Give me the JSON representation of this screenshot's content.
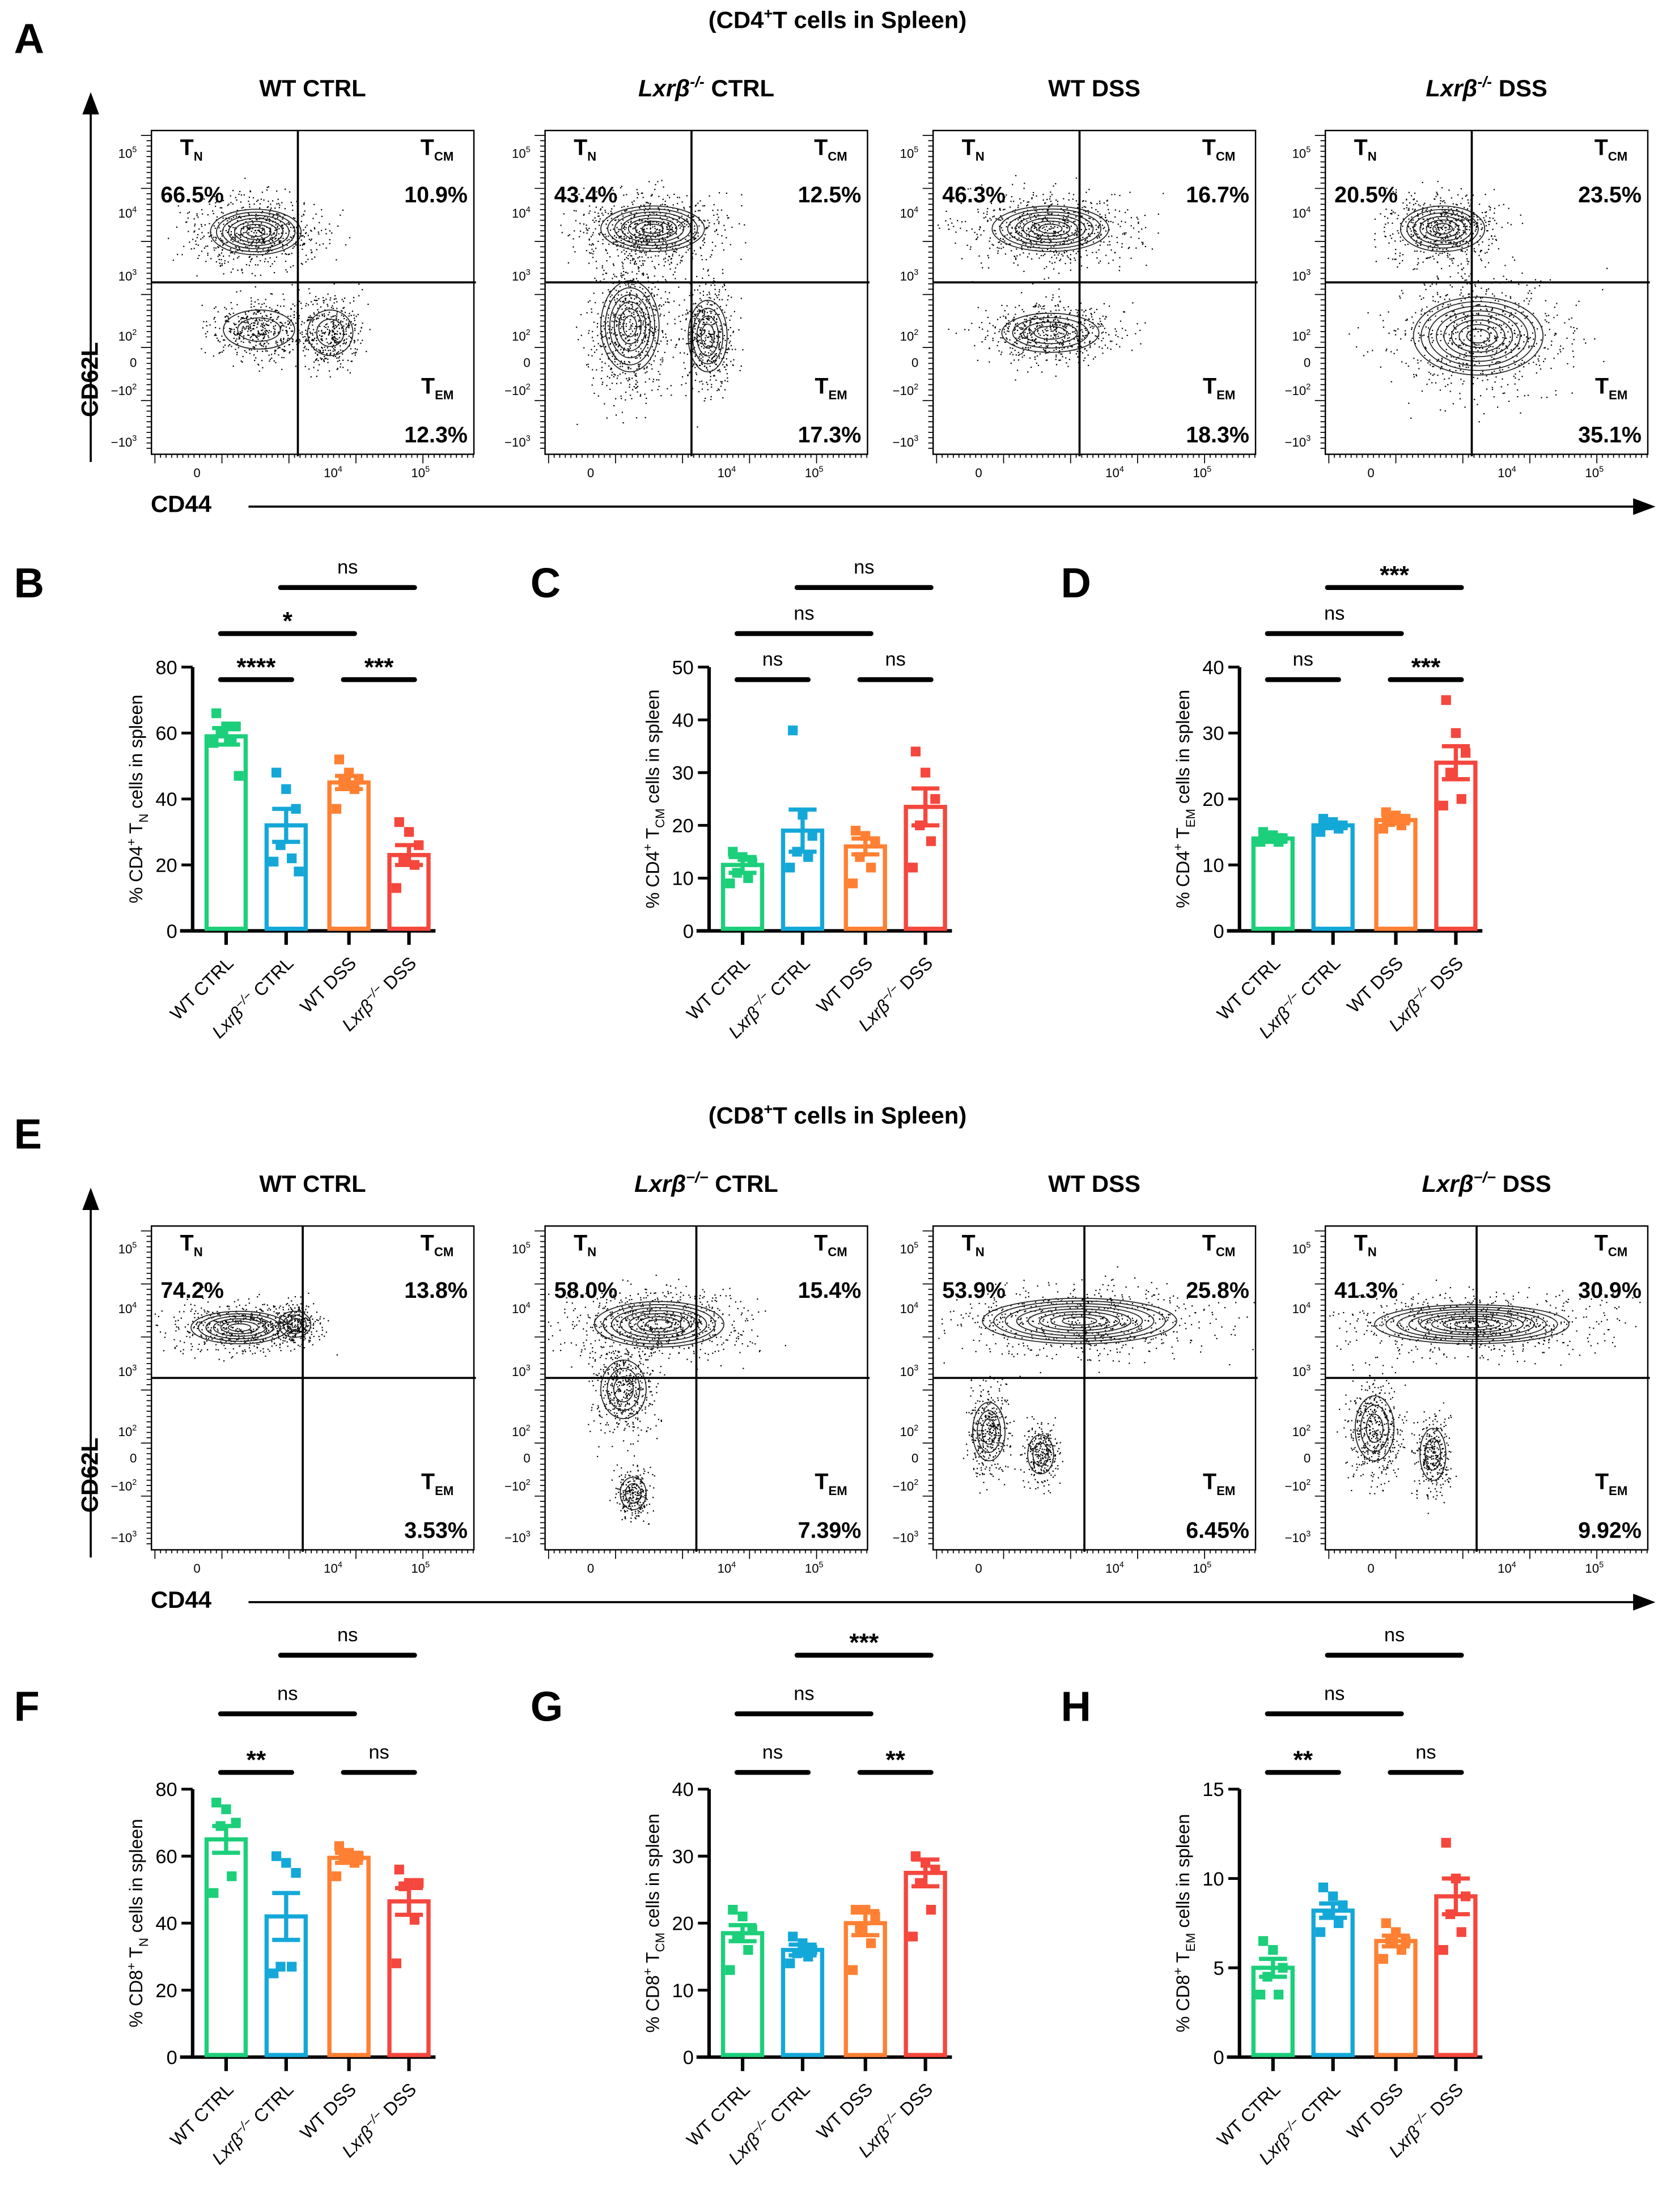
{
  "flow_rows": [
    {
      "letter": "A",
      "title": {
        "pre": "(CD4",
        "sup": "+",
        "post": "T cells in Spleen)"
      },
      "y_axis": "CD62L",
      "x_axis": "CD44",
      "plots": [
        {
          "title": {
            "gene": "",
            "sup": "",
            "text": "WT CTRL"
          },
          "TN": "66.5%",
          "TCM": "10.9%",
          "TEM": "12.3%"
        },
        {
          "title": {
            "gene": "Lxrβ",
            "sup": "-/-",
            "text": " CTRL"
          },
          "TN": "43.4%",
          "TCM": "12.5%",
          "TEM": "17.3%"
        },
        {
          "title": {
            "gene": "",
            "sup": "",
            "text": "WT DSS"
          },
          "TN": "46.3%",
          "TCM": "16.7%",
          "TEM": "18.3%"
        },
        {
          "title": {
            "gene": "Lxrβ",
            "sup": "-/-",
            "text": " DSS"
          },
          "TN": "20.5%",
          "TCM": "23.5%",
          "TEM": "35.1%"
        }
      ]
    },
    {
      "letter": "E",
      "title": {
        "pre": "(CD8",
        "sup": "+",
        "post": "T cells in Spleen)"
      },
      "y_axis": "CD62L",
      "x_axis": "CD44",
      "plots": [
        {
          "title": {
            "gene": "",
            "sup": "",
            "text": "WT CTRL"
          },
          "TN": "74.2%",
          "TCM": "13.8%",
          "TEM": "3.53%"
        },
        {
          "title": {
            "gene": "Lxrβ",
            "sup": "−/−",
            "text": " CTRL"
          },
          "TN": "58.0%",
          "TCM": "15.4%",
          "TEM": "7.39%"
        },
        {
          "title": {
            "gene": "",
            "sup": "",
            "text": "WT DSS"
          },
          "TN": "53.9%",
          "TCM": "25.8%",
          "TEM": "6.45%"
        },
        {
          "title": {
            "gene": "Lxrβ",
            "sup": "−/−",
            "text": " DSS"
          },
          "TN": "41.3%",
          "TCM": "30.9%",
          "TEM": "9.92%"
        }
      ]
    }
  ],
  "quadrant_labels": {
    "TN": {
      "t": "T",
      "sub": "N"
    },
    "TCM": {
      "t": "T",
      "sub": "CM"
    },
    "TEM": {
      "t": "T",
      "sub": "EM"
    }
  },
  "flow_y_ticks": [
    {
      "b": "10",
      "e": "5"
    },
    {
      "b": "10",
      "e": "4"
    },
    {
      "b": "10",
      "e": "3"
    },
    {
      "b": "10",
      "e": "2"
    },
    {
      "b": "0",
      "e": ""
    },
    {
      "b": "−10",
      "e": "2"
    },
    {
      "b": "−10",
      "e": "3"
    }
  ],
  "flow_x_ticks": [
    {
      "b": "0",
      "e": ""
    },
    {
      "b": "10",
      "e": "4"
    },
    {
      "b": "10",
      "e": "5"
    }
  ],
  "colors": [
    "#1ccf7a",
    "#14a8d8",
    "#ff8033",
    "#f5473d"
  ],
  "chart_data": [
    {
      "letter": "B",
      "type": "bar",
      "categories": [
        {
          "gene": "",
          "sup": "",
          "text": "WT CTRL"
        },
        {
          "gene": "Lxrβ",
          "sup": "−/−",
          "text": " CTRL"
        },
        {
          "gene": "",
          "sup": "",
          "text": "WT DSS"
        },
        {
          "gene": "Lxrβ",
          "sup": "−/−",
          "text": "  DSS"
        }
      ],
      "ylabel": {
        "pre": "% CD4",
        "sup": "+",
        "mid": " T",
        "sub": "N",
        "post": " cells in spleen"
      },
      "ylim": [
        0,
        80
      ],
      "yticks": [
        0,
        20,
        40,
        60,
        80
      ],
      "means": [
        59,
        32,
        45,
        23
      ],
      "sem": [
        2.5,
        5,
        2,
        3
      ],
      "points": [
        [
          66,
          62,
          62,
          60,
          58,
          57,
          47
        ],
        [
          48,
          43,
          37,
          26,
          22,
          21,
          18
        ],
        [
          52,
          48,
          46,
          45,
          43,
          37
        ],
        [
          33,
          30,
          26,
          21,
          20,
          13
        ]
      ],
      "comparisons": [
        {
          "groups": [
            0,
            1
          ],
          "label": "****",
          "level": 0
        },
        {
          "groups": [
            2,
            3
          ],
          "label": "***",
          "level": 0
        },
        {
          "groups": [
            0,
            2
          ],
          "label": "*",
          "level": 1
        },
        {
          "groups": [
            1,
            3
          ],
          "label": "ns",
          "level": 2
        }
      ]
    },
    {
      "letter": "C",
      "type": "bar",
      "categories": [
        {
          "gene": "",
          "sup": "",
          "text": "WT CTRL"
        },
        {
          "gene": "Lxrβ",
          "sup": "−/−",
          "text": " CTRL"
        },
        {
          "gene": "",
          "sup": "",
          "text": "WT DSS"
        },
        {
          "gene": "Lxrβ",
          "sup": "−/−",
          "text": "  DSS"
        }
      ],
      "ylabel": {
        "pre": "% CD4",
        "sup": "+",
        "mid": " T",
        "sub": "CM",
        "post": " cells in spleen"
      },
      "ylim": [
        0,
        50
      ],
      "yticks": [
        0,
        10,
        20,
        30,
        40,
        50
      ],
      "means": [
        12.5,
        19,
        16,
        23.5
      ],
      "sem": [
        1.5,
        4,
        1.5,
        3.5
      ],
      "points": [
        [
          15,
          14,
          13,
          11,
          10,
          9
        ],
        [
          38,
          22,
          18,
          15,
          14,
          12
        ],
        [
          19,
          18,
          17,
          14,
          12,
          9
        ],
        [
          34,
          30,
          25,
          20,
          17,
          12
        ]
      ],
      "comparisons": [
        {
          "groups": [
            0,
            1
          ],
          "label": "ns",
          "level": 0
        },
        {
          "groups": [
            2,
            3
          ],
          "label": "ns",
          "level": 0
        },
        {
          "groups": [
            0,
            2
          ],
          "label": "ns",
          "level": 1
        },
        {
          "groups": [
            1,
            3
          ],
          "label": "ns",
          "level": 2
        }
      ]
    },
    {
      "letter": "D",
      "type": "bar",
      "categories": [
        {
          "gene": "",
          "sup": "",
          "text": "WT CTRL"
        },
        {
          "gene": "Lxrβ",
          "sup": "−/−",
          "text": " CTRL"
        },
        {
          "gene": "",
          "sup": "",
          "text": "WT DSS"
        },
        {
          "gene": "Lxrβ",
          "sup": "−/−",
          "text": "  DSS"
        }
      ],
      "ylabel": {
        "pre": "% CD4",
        "sup": "+",
        "mid": " T",
        "sub": "EM",
        "post": " cells in spleen"
      },
      "ylim": [
        0,
        40
      ],
      "yticks": [
        0,
        10,
        20,
        30,
        40
      ],
      "means": [
        14,
        16,
        16.8,
        25.5
      ],
      "sem": [
        0.5,
        0.4,
        0.5,
        2.5
      ],
      "points": [
        [
          15,
          14.5,
          14,
          14,
          13.5,
          13.5
        ],
        [
          17,
          16.5,
          16,
          16,
          15.5,
          15
        ],
        [
          18,
          17.5,
          17,
          16.5,
          16,
          15.5
        ],
        [
          35,
          30,
          27,
          24,
          20,
          19
        ]
      ],
      "comparisons": [
        {
          "groups": [
            0,
            1
          ],
          "label": "ns",
          "level": 0
        },
        {
          "groups": [
            2,
            3
          ],
          "label": "***",
          "level": 0
        },
        {
          "groups": [
            0,
            2
          ],
          "label": "ns",
          "level": 1
        },
        {
          "groups": [
            1,
            3
          ],
          "label": "***",
          "level": 2
        }
      ]
    },
    {
      "letter": "F",
      "type": "bar",
      "categories": [
        {
          "gene": "",
          "sup": "",
          "text": "WT CTRL"
        },
        {
          "gene": "Lxrβ",
          "sup": "−/−",
          "text": " CTRL"
        },
        {
          "gene": "",
          "sup": "",
          "text": "WT DSS"
        },
        {
          "gene": "Lxrβ",
          "sup": "−/−",
          "text": "  DSS"
        }
      ],
      "ylabel": {
        "pre": "% CD8",
        "sup": "+",
        "mid": " T",
        "sub": "N",
        "post": " cells in spleen"
      },
      "ylim": [
        0,
        80
      ],
      "yticks": [
        0,
        20,
        40,
        60,
        80
      ],
      "means": [
        65,
        42,
        59.5,
        46.5
      ],
      "sem": [
        4,
        7,
        1.5,
        4
      ],
      "points": [
        [
          76,
          74,
          70,
          69,
          54,
          49
        ],
        [
          60,
          58,
          55,
          27,
          27,
          25
        ],
        [
          63,
          61,
          60,
          59,
          58,
          54
        ],
        [
          56,
          52,
          52,
          51,
          41,
          28
        ]
      ],
      "comparisons": [
        {
          "groups": [
            0,
            1
          ],
          "label": "**",
          "level": 0
        },
        {
          "groups": [
            2,
            3
          ],
          "label": "ns",
          "level": 0
        },
        {
          "groups": [
            0,
            2
          ],
          "label": "ns",
          "level": 1
        },
        {
          "groups": [
            1,
            3
          ],
          "label": "ns",
          "level": 2
        }
      ]
    },
    {
      "letter": "G",
      "type": "bar",
      "categories": [
        {
          "gene": "",
          "sup": "",
          "text": "WT CTRL"
        },
        {
          "gene": "Lxrβ",
          "sup": "−/−",
          "text": " CTRL"
        },
        {
          "gene": "",
          "sup": "",
          "text": "WT DSS"
        },
        {
          "gene": "Lxrβ",
          "sup": "−/−",
          "text": "  DSS"
        }
      ],
      "ylabel": {
        "pre": "% CD8",
        "sup": "+",
        "mid": " T",
        "sub": "CM",
        "post": " cells in spleen"
      },
      "ylim": [
        0,
        40
      ],
      "yticks": [
        0,
        10,
        20,
        30,
        40
      ],
      "means": [
        18.5,
        16,
        20,
        27.5
      ],
      "sem": [
        1.2,
        0.8,
        1.8,
        2
      ],
      "points": [
        [
          22,
          21,
          19,
          18,
          16,
          13
        ],
        [
          18,
          17,
          16,
          15.5,
          15,
          14
        ],
        [
          22,
          22,
          21,
          19,
          17,
          13
        ],
        [
          30,
          29,
          28,
          26,
          22,
          18
        ]
      ],
      "comparisons": [
        {
          "groups": [
            0,
            1
          ],
          "label": "ns",
          "level": 0
        },
        {
          "groups": [
            2,
            3
          ],
          "label": "**",
          "level": 0
        },
        {
          "groups": [
            0,
            2
          ],
          "label": "ns",
          "level": 1
        },
        {
          "groups": [
            1,
            3
          ],
          "label": "***",
          "level": 2
        }
      ]
    },
    {
      "letter": "H",
      "type": "bar",
      "categories": [
        {
          "gene": "",
          "sup": "",
          "text": "WT CTRL"
        },
        {
          "gene": "Lxrβ",
          "sup": "−/−",
          "text": " CTRL"
        },
        {
          "gene": "",
          "sup": "",
          "text": "WT DSS"
        },
        {
          "gene": "Lxrβ",
          "sup": "−/−",
          "text": "  DSS"
        }
      ],
      "ylabel": {
        "pre": "% CD8",
        "sup": "+",
        "mid": " T",
        "sub": "EM",
        "post": " cells in spleen"
      },
      "ylim": [
        0,
        15
      ],
      "yticks": [
        0,
        5,
        10,
        15
      ],
      "means": [
        5,
        8.2,
        6.5,
        9
      ],
      "sem": [
        0.5,
        0.4,
        0.3,
        1
      ],
      "points": [
        [
          6.5,
          6,
          5,
          4.5,
          3.5,
          3.5
        ],
        [
          9.5,
          9,
          8.5,
          8,
          7.5,
          7
        ],
        [
          7.5,
          7,
          6.5,
          6.5,
          6,
          5.5
        ],
        [
          12,
          10,
          9,
          8,
          7,
          6
        ]
      ],
      "comparisons": [
        {
          "groups": [
            0,
            1
          ],
          "label": "**",
          "level": 0
        },
        {
          "groups": [
            2,
            3
          ],
          "label": "ns",
          "level": 0
        },
        {
          "groups": [
            0,
            2
          ],
          "label": "ns",
          "level": 1
        },
        {
          "groups": [
            1,
            3
          ],
          "label": "ns",
          "level": 2
        }
      ]
    }
  ]
}
